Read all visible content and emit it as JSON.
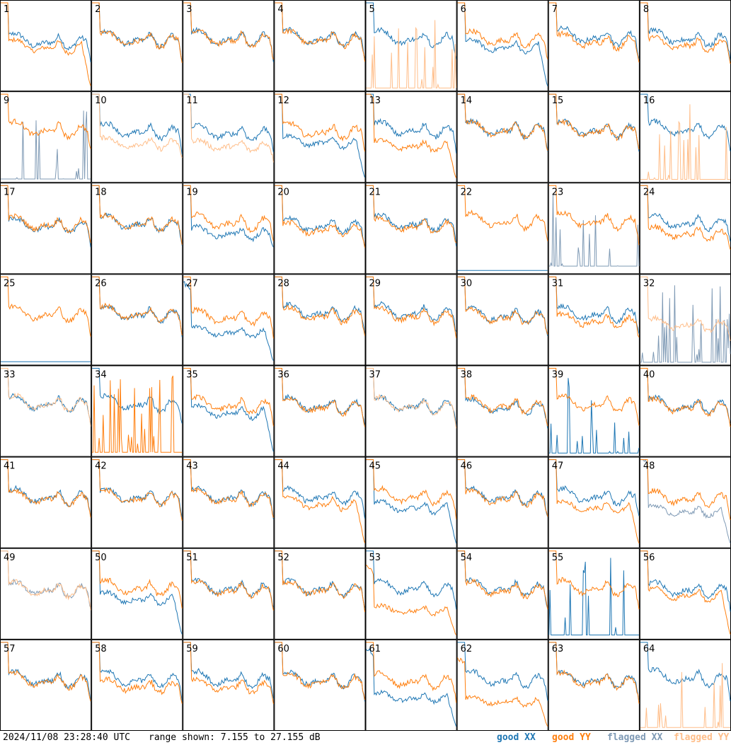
{
  "footer": {
    "timestamp": "2024/11/08 23:28:40 UTC",
    "range_text": "range shown: 7.155 to 27.155 dB"
  },
  "legend": [
    {
      "label": "good XX",
      "color": "#1f77b4"
    },
    {
      "label": "good YY",
      "color": "#ff7f0e"
    },
    {
      "label": "flagged XX",
      "color": "#7f9ab5"
    },
    {
      "label": "flagged YY",
      "color": "#ffbe8a"
    }
  ],
  "chart_data": {
    "type": "line",
    "layout": "small-multiples 8x8",
    "ylim": [
      7.155,
      27.155
    ],
    "yunit": "dB",
    "panels": [
      {
        "id": "1",
        "xx": "good",
        "yy": "good",
        "xx_level": 0.62,
        "yy_level": 0.55,
        "xx_shape": "normal",
        "yy_shape": "drop"
      },
      {
        "id": "2",
        "xx": "good",
        "yy": "good",
        "xx_level": 0.65,
        "yy_level": 0.64,
        "xx_shape": "normal",
        "yy_shape": "normal"
      },
      {
        "id": "3",
        "xx": "good",
        "yy": "good",
        "xx_level": 0.66,
        "yy_level": 0.65,
        "xx_shape": "normal",
        "yy_shape": "normal"
      },
      {
        "id": "4",
        "xx": "good",
        "yy": "good",
        "xx_level": 0.66,
        "yy_level": 0.65,
        "xx_shape": "normal",
        "yy_shape": "normal"
      },
      {
        "id": "5",
        "xx": "good",
        "yy": "flagged",
        "xx_level": 0.66,
        "yy_level": 0.03,
        "xx_shape": "normal",
        "yy_shape": "spikes"
      },
      {
        "id": "6",
        "xx": "good",
        "yy": "good",
        "xx_level": 0.55,
        "yy_level": 0.65,
        "xx_shape": "drop",
        "yy_shape": "normal"
      },
      {
        "id": "7",
        "xx": "good",
        "yy": "good",
        "xx_level": 0.68,
        "yy_level": 0.62,
        "xx_shape": "normal",
        "yy_shape": "normal"
      },
      {
        "id": "8",
        "xx": "good",
        "yy": "good",
        "xx_level": 0.66,
        "yy_level": 0.58,
        "xx_shape": "normal",
        "yy_shape": "normal"
      },
      {
        "id": "9",
        "xx": "flagged",
        "yy": "good",
        "xx_level": 0.05,
        "yy_level": 0.66,
        "xx_shape": "spikes",
        "yy_shape": "normal"
      },
      {
        "id": "10",
        "xx": "good",
        "yy": "flagged",
        "xx_level": 0.64,
        "yy_level": 0.48,
        "xx_shape": "normal",
        "yy_shape": "normal"
      },
      {
        "id": "11",
        "xx": "good",
        "yy": "flagged",
        "xx_level": 0.62,
        "yy_level": 0.45,
        "xx_shape": "normal",
        "yy_shape": "normal"
      },
      {
        "id": "12",
        "xx": "good",
        "yy": "good",
        "xx_level": 0.5,
        "yy_level": 0.64,
        "xx_shape": "drop",
        "yy_shape": "normal"
      },
      {
        "id": "13",
        "xx": "good",
        "yy": "good",
        "xx_level": 0.66,
        "yy_level": 0.45,
        "xx_shape": "normal",
        "yy_shape": "drop"
      },
      {
        "id": "14",
        "xx": "good",
        "yy": "good",
        "xx_level": 0.66,
        "yy_level": 0.66,
        "xx_shape": "normal",
        "yy_shape": "normal"
      },
      {
        "id": "15",
        "xx": "good",
        "yy": "good",
        "xx_level": 0.66,
        "yy_level": 0.65,
        "xx_shape": "normal",
        "yy_shape": "normal"
      },
      {
        "id": "16",
        "xx": "good",
        "yy": "flagged",
        "xx_level": 0.66,
        "yy_level": 0.03,
        "xx_shape": "normal",
        "yy_shape": "spikes"
      },
      {
        "id": "17",
        "xx": "good",
        "yy": "good",
        "xx_level": 0.6,
        "yy_level": 0.62,
        "xx_shape": "normal",
        "yy_shape": "normal"
      },
      {
        "id": "18",
        "xx": "good",
        "yy": "good",
        "xx_level": 0.63,
        "yy_level": 0.63,
        "xx_shape": "normal",
        "yy_shape": "normal"
      },
      {
        "id": "19",
        "xx": "good",
        "yy": "good",
        "xx_level": 0.5,
        "yy_level": 0.64,
        "xx_shape": "normal",
        "yy_shape": "normal"
      },
      {
        "id": "20",
        "xx": "good",
        "yy": "good",
        "xx_level": 0.6,
        "yy_level": 0.55,
        "xx_shape": "normal",
        "yy_shape": "normal"
      },
      {
        "id": "21",
        "xx": "good",
        "yy": "good",
        "xx_level": 0.63,
        "yy_level": 0.6,
        "xx_shape": "normal",
        "yy_shape": "normal"
      },
      {
        "id": "22",
        "xx": "good",
        "yy": "good",
        "xx_level": 0.01,
        "yy_level": 0.66,
        "xx_shape": "flat",
        "yy_shape": "normal"
      },
      {
        "id": "23",
        "xx": "flagged",
        "yy": "good",
        "xx_level": 0.3,
        "yy_level": 0.66,
        "xx_shape": "spikes",
        "yy_shape": "normal"
      },
      {
        "id": "24",
        "xx": "good",
        "yy": "good",
        "xx_level": 0.64,
        "yy_level": 0.5,
        "xx_shape": "normal",
        "yy_shape": "normal"
      },
      {
        "id": "25",
        "xx": "good",
        "yy": "good",
        "xx_level": 0.01,
        "yy_level": 0.64,
        "xx_shape": "flat",
        "yy_shape": "normal"
      },
      {
        "id": "26",
        "xx": "good",
        "yy": "good",
        "xx_level": 0.64,
        "yy_level": 0.64,
        "xx_shape": "normal",
        "yy_shape": "normal"
      },
      {
        "id": "27",
        "xx": "good",
        "yy": "good",
        "xx_level": 0.4,
        "yy_level": 0.6,
        "xx_shape": "drop",
        "yy_shape": "normal"
      },
      {
        "id": "28",
        "xx": "good",
        "yy": "good",
        "xx_level": 0.66,
        "yy_level": 0.62,
        "xx_shape": "normal",
        "yy_shape": "normal"
      },
      {
        "id": "29",
        "xx": "good",
        "yy": "good",
        "xx_level": 0.66,
        "yy_level": 0.62,
        "xx_shape": "normal",
        "yy_shape": "normal"
      },
      {
        "id": "30",
        "xx": "good",
        "yy": "good",
        "xx_level": 0.62,
        "yy_level": 0.6,
        "xx_shape": "normal",
        "yy_shape": "normal"
      },
      {
        "id": "31",
        "xx": "good",
        "yy": "good",
        "xx_level": 0.64,
        "yy_level": 0.55,
        "xx_shape": "normal",
        "yy_shape": "normal"
      },
      {
        "id": "32",
        "xx": "flagged",
        "yy": "flagged",
        "xx_level": 0.02,
        "yy_level": 0.5,
        "xx_shape": "spikes",
        "yy_shape": "normal"
      },
      {
        "id": "33",
        "xx": "good",
        "yy": "flagged",
        "xx_level": 0.66,
        "yy_level": 0.66,
        "xx_shape": "normal",
        "yy_shape": "normal"
      },
      {
        "id": "34",
        "xx": "good",
        "yy": "good",
        "xx_level": 0.66,
        "yy_level": 0.1,
        "xx_shape": "normal",
        "yy_shape": "spikes"
      },
      {
        "id": "35",
        "xx": "good",
        "yy": "good",
        "xx_level": 0.55,
        "yy_level": 0.64,
        "xx_shape": "drop",
        "yy_shape": "normal"
      },
      {
        "id": "36",
        "xx": "good",
        "yy": "good",
        "xx_level": 0.64,
        "yy_level": 0.62,
        "xx_shape": "normal",
        "yy_shape": "normal"
      },
      {
        "id": "37",
        "xx": "good",
        "yy": "flagged",
        "xx_level": 0.64,
        "yy_level": 0.64,
        "xx_shape": "normal",
        "yy_shape": "normal"
      },
      {
        "id": "38",
        "xx": "good",
        "yy": "good",
        "xx_level": 0.62,
        "yy_level": 0.64,
        "xx_shape": "normal",
        "yy_shape": "normal"
      },
      {
        "id": "39",
        "xx": "good",
        "yy": "good",
        "xx_level": 0.05,
        "yy_level": 0.66,
        "xx_shape": "spikes",
        "yy_shape": "normal"
      },
      {
        "id": "40",
        "xx": "good",
        "yy": "good",
        "xx_level": 0.64,
        "yy_level": 0.62,
        "xx_shape": "normal",
        "yy_shape": "normal"
      },
      {
        "id": "41",
        "xx": "good",
        "yy": "good",
        "xx_level": 0.64,
        "yy_level": 0.62,
        "xx_shape": "normal",
        "yy_shape": "normal"
      },
      {
        "id": "42",
        "xx": "good",
        "yy": "good",
        "xx_level": 0.64,
        "yy_level": 0.62,
        "xx_shape": "normal",
        "yy_shape": "normal"
      },
      {
        "id": "43",
        "xx": "good",
        "yy": "good",
        "xx_level": 0.64,
        "yy_level": 0.62,
        "xx_shape": "normal",
        "yy_shape": "normal"
      },
      {
        "id": "44",
        "xx": "good",
        "yy": "good",
        "xx_level": 0.64,
        "yy_level": 0.55,
        "xx_shape": "normal",
        "yy_shape": "drop"
      },
      {
        "id": "45",
        "xx": "good",
        "yy": "good",
        "xx_level": 0.5,
        "yy_level": 0.64,
        "xx_shape": "drop",
        "yy_shape": "normal"
      },
      {
        "id": "46",
        "xx": "good",
        "yy": "good",
        "xx_level": 0.64,
        "yy_level": 0.62,
        "xx_shape": "normal",
        "yy_shape": "normal"
      },
      {
        "id": "47",
        "xx": "good",
        "yy": "good",
        "xx_level": 0.64,
        "yy_level": 0.5,
        "xx_shape": "normal",
        "yy_shape": "drop"
      },
      {
        "id": "48",
        "xx": "flagged",
        "yy": "good",
        "xx_level": 0.45,
        "yy_level": 0.62,
        "xx_shape": "drop",
        "yy_shape": "normal"
      },
      {
        "id": "49",
        "xx": "flagged",
        "yy": "flagged",
        "xx_level": 0.62,
        "yy_level": 0.62,
        "xx_shape": "normal",
        "yy_shape": "normal"
      },
      {
        "id": "50",
        "xx": "good",
        "yy": "good",
        "xx_level": 0.5,
        "yy_level": 0.64,
        "xx_shape": "drop",
        "yy_shape": "normal"
      },
      {
        "id": "51",
        "xx": "good",
        "yy": "good",
        "xx_level": 0.64,
        "yy_level": 0.62,
        "xx_shape": "normal",
        "yy_shape": "normal"
      },
      {
        "id": "52",
        "xx": "good",
        "yy": "good",
        "xx_level": 0.64,
        "yy_level": 0.62,
        "xx_shape": "normal",
        "yy_shape": "normal"
      },
      {
        "id": "53",
        "xx": "good",
        "yy": "good",
        "xx_level": 0.64,
        "yy_level": 0.35,
        "xx_shape": "normal",
        "yy_shape": "drop"
      },
      {
        "id": "54",
        "xx": "good",
        "yy": "good",
        "xx_level": 0.64,
        "yy_level": 0.62,
        "xx_shape": "normal",
        "yy_shape": "normal"
      },
      {
        "id": "55",
        "xx": "good",
        "yy": "good",
        "xx_level": 0.1,
        "yy_level": 0.64,
        "xx_shape": "spikes",
        "yy_shape": "normal"
      },
      {
        "id": "56",
        "xx": "good",
        "yy": "good",
        "xx_level": 0.62,
        "yy_level": 0.55,
        "xx_shape": "normal",
        "yy_shape": "drop"
      },
      {
        "id": "57",
        "xx": "good",
        "yy": "good",
        "xx_level": 0.64,
        "yy_level": 0.62,
        "xx_shape": "normal",
        "yy_shape": "normal"
      },
      {
        "id": "58",
        "xx": "good",
        "yy": "good",
        "xx_level": 0.64,
        "yy_level": 0.55,
        "xx_shape": "normal",
        "yy_shape": "normal"
      },
      {
        "id": "59",
        "xx": "good",
        "yy": "good",
        "xx_level": 0.64,
        "yy_level": 0.55,
        "xx_shape": "normal",
        "yy_shape": "normal"
      },
      {
        "id": "60",
        "xx": "good",
        "yy": "good",
        "xx_level": 0.64,
        "yy_level": 0.62,
        "xx_shape": "normal",
        "yy_shape": "normal"
      },
      {
        "id": "61",
        "xx": "good",
        "yy": "good",
        "xx_level": 0.4,
        "yy_level": 0.62,
        "xx_shape": "drop",
        "yy_shape": "normal"
      },
      {
        "id": "62",
        "xx": "good",
        "yy": "good",
        "xx_level": 0.64,
        "yy_level": 0.35,
        "xx_shape": "normal",
        "yy_shape": "drop"
      },
      {
        "id": "63",
        "xx": "good",
        "yy": "good",
        "xx_level": 0.64,
        "yy_level": 0.62,
        "xx_shape": "normal",
        "yy_shape": "normal"
      },
      {
        "id": "64",
        "xx": "good",
        "yy": "flagged",
        "xx_level": 0.66,
        "yy_level": 0.03,
        "xx_shape": "normal",
        "yy_shape": "spikes"
      }
    ]
  }
}
